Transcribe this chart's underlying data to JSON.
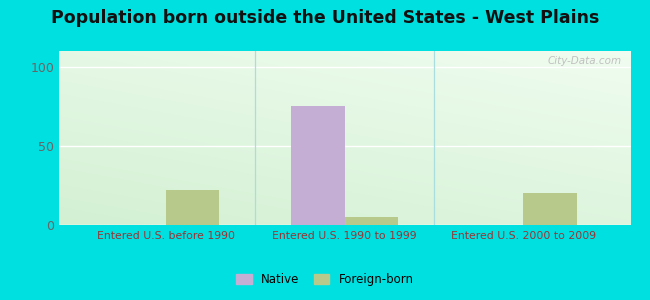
{
  "title": "Population born outside the United States - West Plains",
  "background_outer": "#00e0e0",
  "categories": [
    "Entered U.S. before 1990",
    "Entered U.S. 1990 to 1999",
    "Entered U.S. 2000 to 2009"
  ],
  "native_values": [
    0,
    75,
    0
  ],
  "foreign_values": [
    22,
    5,
    20
  ],
  "native_color": "#c4aed4",
  "foreign_color": "#b8c98c",
  "ylim": [
    0,
    110
  ],
  "yticks": [
    0,
    50,
    100
  ],
  "xlabel_color": "#993333",
  "ylabel_color": "#666666",
  "title_color": "#111111",
  "title_fontsize": 12.5,
  "bar_width": 0.3,
  "watermark": "City-Data.com",
  "legend_native": "Native",
  "legend_foreign": "Foreign-born",
  "grid_color": "#ffffff",
  "bg_top_left": "#c8e8c8",
  "bg_bottom_right": "#f0faf0"
}
